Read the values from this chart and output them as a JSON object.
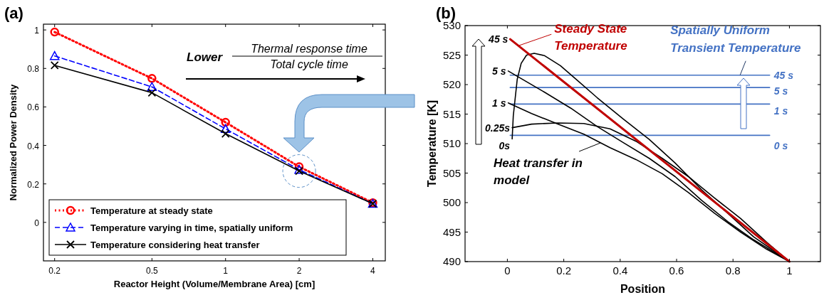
{
  "chart_data": [
    {
      "type": "line",
      "title": "(a)",
      "xlabel": "Reactor Height (Volume/Membrane Area) [cm]",
      "ylabel": "Normalized Power Density",
      "log": "x",
      "xlim": [
        0.18,
        4.5
      ],
      "xticks": [
        0.2,
        0.5,
        1,
        2,
        4
      ],
      "ylim": [
        -0.2,
        1.03
      ],
      "yticks": [
        0,
        0.2,
        0.4,
        0.6,
        0.8,
        1
      ],
      "grid": false,
      "legend": "bottom left",
      "x": [
        0.2,
        0.5,
        1,
        2,
        4
      ],
      "series": [
        {
          "name": "Temperature at steady state",
          "color": "#ff0000",
          "marker": "circle",
          "line_style": "dotted",
          "values": [
            0.989,
            0.748,
            0.52,
            0.289,
            0.102
          ]
        },
        {
          "name": "Temperature varying in time, spatially uniform",
          "color": "#0000ff",
          "marker": "triangle",
          "line_style": "dashed",
          "values": [
            0.865,
            0.704,
            0.486,
            0.274,
            0.097
          ]
        },
        {
          "name": "Temperature considering heat transfer",
          "color": "#000000",
          "marker": "cross",
          "line_style": "solid",
          "values": [
            0.816,
            0.674,
            0.461,
            0.267,
            0.097
          ]
        }
      ],
      "annotations": [
        "Lower",
        "Thermal response time",
        "Total cycle time"
      ]
    },
    {
      "type": "line",
      "title": "(b)",
      "xlabel": "Position",
      "ylabel": "Temperature [K]",
      "xlim": [
        -0.15,
        1.11
      ],
      "xticks": [
        0,
        0.2,
        0.4,
        0.6,
        0.8,
        1
      ],
      "ylim": [
        490,
        530
      ],
      "yticks": [
        490,
        495,
        500,
        505,
        510,
        515,
        520,
        525,
        530
      ],
      "grid": false,
      "legend": false,
      "marker": "none",
      "line_style": "solid",
      "series": [
        {
          "name": "45 s",
          "color": "#4472c4",
          "x": [
            0.01,
            0.93
          ],
          "values": [
            521.6,
            521.6
          ]
        },
        {
          "name": "5 s",
          "color": "#4472c4",
          "x": [
            0.01,
            0.93
          ],
          "values": [
            519.5,
            519.5
          ]
        },
        {
          "name": "1 s",
          "color": "#4472c4",
          "x": [
            0.01,
            0.93
          ],
          "values": [
            516.7,
            516.7
          ]
        },
        {
          "name": "0 s",
          "color": "#4472c4",
          "x": [
            0.01,
            0.93
          ],
          "values": [
            511.4,
            511.4
          ]
        },
        {
          "color": "#000000",
          "x": [
            0.017,
            0.021,
            0.035,
            0.049,
            0.068,
            0.095,
            0.132,
            0.188,
            0.244,
            0.318,
            0.41,
            0.503,
            0.595,
            0.688,
            0.781,
            0.873,
            1
          ],
          "values": [
            510.8,
            514.7,
            520.9,
            523.6,
            525.0,
            525.3,
            524.9,
            523.2,
            520.9,
            517.8,
            514.2,
            510.7,
            506.7,
            502.2,
            498.2,
            494.2,
            490
          ]
        },
        {
          "color": "#000000",
          "x": [
            0.003,
            0.132,
            0.225,
            0.318,
            0.41,
            0.503,
            0.595,
            0.688,
            0.781,
            0.873,
            1
          ],
          "values": [
            522.3,
            518.7,
            516.0,
            512.9,
            510.2,
            507.5,
            504.4,
            500.4,
            496.8,
            493.7,
            490
          ]
        },
        {
          "color": "#000000",
          "x": [
            0.003,
            0.086,
            0.179,
            0.271,
            0.364,
            0.456,
            0.549,
            0.642,
            0.734,
            0.827,
            0.919,
            1
          ],
          "values": [
            516.9,
            515.1,
            513.3,
            511.6,
            509.3,
            507.3,
            504.9,
            501.7,
            498.2,
            495.0,
            492.1,
            490
          ]
        },
        {
          "color": "#000000",
          "x": [
            0.017,
            0.086,
            0.179,
            0.271,
            0.364,
            0.456,
            0.549,
            0.642,
            0.734,
            0.827,
            0.919,
            1
          ],
          "values": [
            512.7,
            513.3,
            513.5,
            513.4,
            512.5,
            510.4,
            507.5,
            504.4,
            500.8,
            497.3,
            493.3,
            490
          ]
        },
        {
          "color": "#c00000",
          "x": [
            0.01,
            1
          ],
          "values": [
            527.7,
            490
          ]
        }
      ],
      "annotations": [
        {
          "text": "45 s",
          "x": 0.01,
          "y": 527.7
        },
        {
          "text": "5 s",
          "x": 0.003,
          "y": 522.3
        },
        {
          "text": "1 s",
          "x": 0.003,
          "y": 516.9
        },
        {
          "text": "0.25s",
          "x": 0.017,
          "y": 512.7
        },
        {
          "text": "0s",
          "x": 0.017,
          "y": 510.8
        },
        {
          "text": "Heat transfer in\nmodel",
          "x": 0.33,
          "y": 510.6
        },
        {
          "text": "Spatially Uniform\nTransient Temperature",
          "x": 0.82,
          "y": 521.6
        },
        {
          "text": "Steady State\nTemperature",
          "x": 0.04,
          "y": 526.6
        }
      ]
    }
  ]
}
